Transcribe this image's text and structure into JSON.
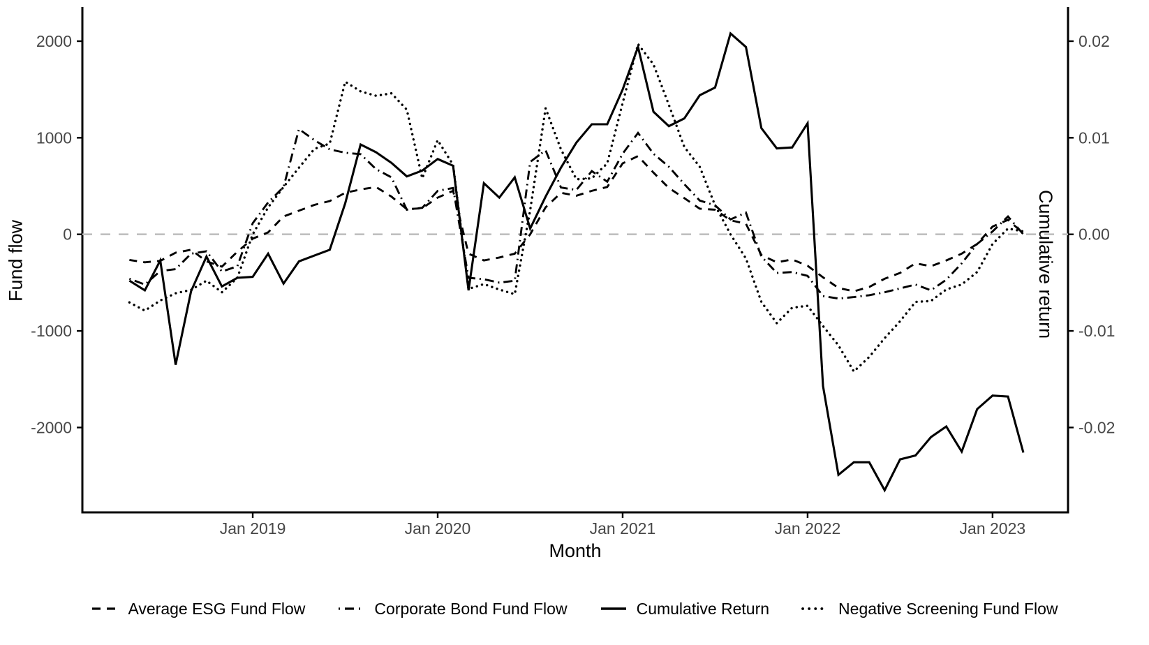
{
  "chart_data": {
    "type": "line",
    "title": "",
    "grid": "off",
    "legend_position": "bottom",
    "axis_text_color": "#474747",
    "axis_line_color": "#000000",
    "reference_line": {
      "value": 0,
      "style": "dashed",
      "color": "#bfbfbf"
    },
    "x": {
      "title": "Month",
      "months": [
        "2018-05",
        "2018-06",
        "2018-07",
        "2018-08",
        "2018-09",
        "2018-10",
        "2018-11",
        "2018-12",
        "2019-01",
        "2019-02",
        "2019-03",
        "2019-04",
        "2019-05",
        "2019-06",
        "2019-07",
        "2019-08",
        "2019-09",
        "2019-10",
        "2019-11",
        "2019-12",
        "2020-01",
        "2020-02",
        "2020-03",
        "2020-04",
        "2020-05",
        "2020-06",
        "2020-07",
        "2020-08",
        "2020-09",
        "2020-10",
        "2020-11",
        "2020-12",
        "2021-01",
        "2021-02",
        "2021-03",
        "2021-04",
        "2021-05",
        "2021-06",
        "2021-07",
        "2021-08",
        "2021-09",
        "2021-10",
        "2021-11",
        "2021-12",
        "2022-01",
        "2022-02",
        "2022-03",
        "2022-04",
        "2022-05",
        "2022-06",
        "2022-07",
        "2022-08",
        "2022-09",
        "2022-10",
        "2022-11",
        "2022-12",
        "2023-01",
        "2023-02",
        "2023-03"
      ],
      "ticks": [
        {
          "label": "Jan 2019",
          "month": "2019-01"
        },
        {
          "label": "Jan 2020",
          "month": "2020-01"
        },
        {
          "label": "Jan 2021",
          "month": "2021-01"
        },
        {
          "label": "Jan 2022",
          "month": "2022-01"
        },
        {
          "label": "Jan 2023",
          "month": "2023-01"
        }
      ]
    },
    "y_left": {
      "title": "Fund flow",
      "ticks": [
        "2000",
        "1000",
        "0",
        "-1000",
        "-2000"
      ],
      "tick_values": [
        2000,
        1000,
        0,
        -1000,
        -2000
      ],
      "range": [
        -2880,
        2350
      ]
    },
    "y_right": {
      "title": "Cumulative return",
      "ticks": [
        "0.02",
        "0.01",
        "0.00",
        "-0.01",
        "-0.02"
      ],
      "tick_values": [
        0.02,
        0.01,
        0.0,
        -0.01,
        -0.02
      ],
      "scale_per_left_unit": 1e-05
    },
    "series": [
      {
        "name": "Average ESG Fund Flow",
        "style": "dashed",
        "axis": "left",
        "color": "#000000",
        "values": [
          -265,
          -290,
          -275,
          -190,
          -160,
          -280,
          -335,
          -180,
          -45,
          20,
          185,
          245,
          305,
          345,
          430,
          465,
          490,
          390,
          260,
          270,
          380,
          450,
          -200,
          -270,
          -240,
          -200,
          0,
          280,
          430,
          400,
          450,
          490,
          735,
          810,
          640,
          480,
          375,
          265,
          255,
          145,
          110,
          -215,
          -290,
          -260,
          -325,
          -445,
          -555,
          -590,
          -545,
          -460,
          -400,
          -300,
          -330,
          -270,
          -200,
          -100,
          80,
          150,
          10
        ]
      },
      {
        "name": "Corporate Bond Fund Flow",
        "style": "dashdot",
        "axis": "left",
        "color": "#000000",
        "values": [
          -460,
          -520,
          -380,
          -360,
          -200,
          -175,
          -385,
          -330,
          115,
          330,
          490,
          1090,
          975,
          880,
          845,
          830,
          675,
          590,
          255,
          275,
          450,
          480,
          -450,
          -465,
          -500,
          -480,
          750,
          870,
          485,
          460,
          655,
          545,
          835,
          1050,
          835,
          700,
          520,
          350,
          300,
          155,
          225,
          -230,
          -400,
          -390,
          -430,
          -640,
          -665,
          -650,
          -630,
          -600,
          -560,
          -520,
          -580,
          -470,
          -300,
          -100,
          30,
          185,
          0
        ]
      },
      {
        "name": "Cumulative Return",
        "style": "solid",
        "axis": "right",
        "color": "#000000",
        "values": [
          -0.0048,
          -0.0058,
          -0.0027,
          -0.0135,
          -0.0059,
          -0.0023,
          -0.0054,
          -0.0045,
          -0.0044,
          -0.002,
          -0.0051,
          -0.0028,
          -0.0022,
          -0.0016,
          0.0032,
          0.0093,
          0.0085,
          0.0074,
          0.006,
          0.0066,
          0.0078,
          0.0071,
          -0.0058,
          0.0053,
          0.0038,
          0.0059,
          0.0006,
          0.0039,
          0.0069,
          0.0095,
          0.0114,
          0.0114,
          0.015,
          0.0194,
          0.0127,
          0.0112,
          0.012,
          0.0144,
          0.0152,
          0.0208,
          0.0194,
          0.011,
          0.0089,
          0.009,
          0.0115,
          -0.0157,
          -0.0249,
          -0.0236,
          -0.0236,
          -0.0265,
          -0.0233,
          -0.0229,
          -0.021,
          -0.0199,
          -0.0225,
          -0.0181,
          -0.0167,
          -0.0168,
          -0.0226
        ]
      },
      {
        "name": "Negative Screening Fund Flow",
        "style": "dotted",
        "axis": "left",
        "color": "#000000",
        "values": [
          -705,
          -790,
          -685,
          -610,
          -575,
          -480,
          -600,
          -450,
          0,
          280,
          490,
          690,
          885,
          940,
          1580,
          1480,
          1435,
          1460,
          1290,
          580,
          975,
          720,
          -565,
          -515,
          -572,
          -620,
          250,
          1305,
          880,
          570,
          580,
          735,
          1360,
          1970,
          1760,
          1340,
          905,
          700,
          300,
          0,
          -250,
          -700,
          -920,
          -760,
          -740,
          -950,
          -1150,
          -1420,
          -1270,
          -1075,
          -900,
          -700,
          -690,
          -570,
          -520,
          -390,
          -100,
          60,
          30
        ]
      }
    ]
  }
}
